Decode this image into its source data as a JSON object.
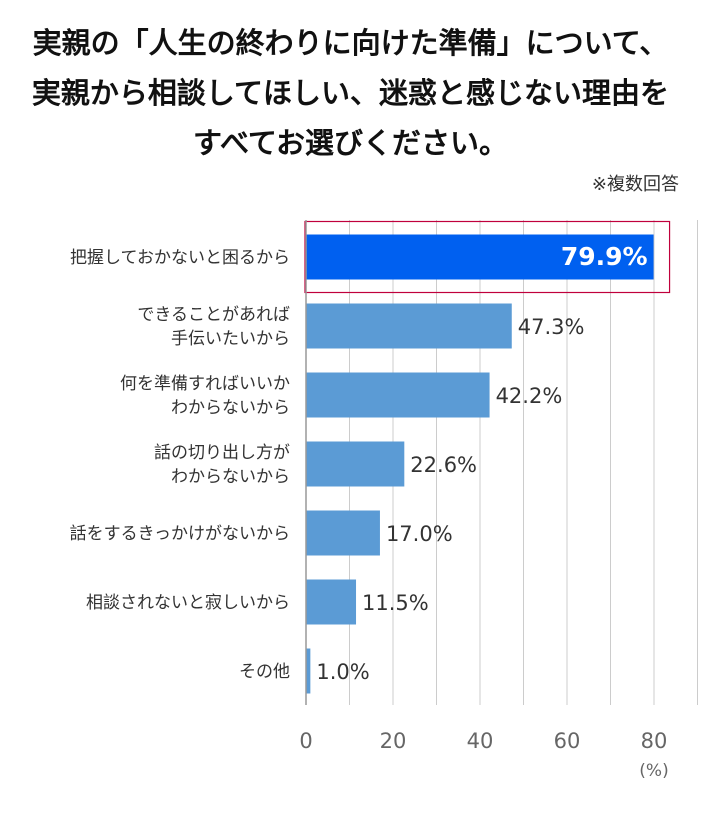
{
  "title_lines": [
    "実親の「人生の終わりに向けた準備」について、",
    "実親から相談してほしい、迷惑と感じない理由を",
    "すべてお選びください。"
  ],
  "note": "※複数回答",
  "chart_data": {
    "type": "bar",
    "orientation": "horizontal",
    "categories": [
      [
        "把握しておかないと困るから"
      ],
      [
        "できることがあれば",
        "手伝いたいから"
      ],
      [
        "何を準備すればいいか",
        "わからないから"
      ],
      [
        "話の切り出し方が",
        "わからないから"
      ],
      [
        "話をするきっかけがないから"
      ],
      [
        "相談されないと寂しいから"
      ],
      [
        "その他"
      ]
    ],
    "values": [
      79.9,
      47.3,
      42.2,
      22.6,
      17.0,
      11.5,
      1.0
    ],
    "value_labels": [
      "79.9%",
      "47.3%",
      "42.2%",
      "22.6%",
      "17.0%",
      "11.5%",
      "1.0%"
    ],
    "highlight_index": 0,
    "xlim": [
      0,
      90
    ],
    "xticks": [
      0,
      20,
      40,
      60,
      80
    ],
    "tick_labels": [
      "0",
      "20",
      "40",
      "60",
      "80"
    ],
    "unit_label": "(%)",
    "grid": true,
    "colors": {
      "bar": "#5b9bd5",
      "highlight_bar": "#0060f0",
      "highlight_border": "#c0003c",
      "grid": "#cccccc"
    }
  }
}
